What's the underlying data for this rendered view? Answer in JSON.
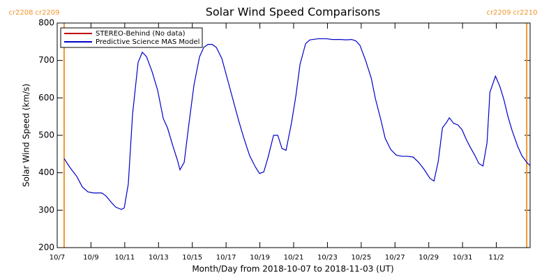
{
  "chart_data": {
    "type": "line",
    "title": "Solar Wind Speed Comparisons",
    "x_label": "Month/Day from 2018-10-07 to 2018-11-03 (UT)",
    "y_label": "Solar Wind Speed (km/s)",
    "xlim": [
      0,
      28
    ],
    "ylim": [
      200,
      800
    ],
    "xticks": [
      {
        "value": 0,
        "label": "10/7"
      },
      {
        "value": 2,
        "label": "10/9"
      },
      {
        "value": 4,
        "label": "10/11"
      },
      {
        "value": 6,
        "label": "10/13"
      },
      {
        "value": 8,
        "label": "10/15"
      },
      {
        "value": 10,
        "label": "10/17"
      },
      {
        "value": 12,
        "label": "10/19"
      },
      {
        "value": 14,
        "label": "10/21"
      },
      {
        "value": 16,
        "label": "10/23"
      },
      {
        "value": 18,
        "label": "10/25"
      },
      {
        "value": 20,
        "label": "10/27"
      },
      {
        "value": 22,
        "label": "10/29"
      },
      {
        "value": 24,
        "label": "10/31"
      },
      {
        "value": 26,
        "label": "11/2"
      }
    ],
    "yticks": [
      200,
      300,
      400,
      500,
      600,
      700,
      800
    ],
    "legend": "upper left",
    "markers": [
      {
        "x": 0.41,
        "labels": [
          "cr2208",
          "cr2209"
        ],
        "color": "#f0962a"
      },
      {
        "x": 27.8,
        "labels": [
          "cr2209",
          "cr2210"
        ],
        "color": "#f0962a"
      }
    ],
    "series": [
      {
        "name": "STEREO-Behind (No data)",
        "color": "#c00000",
        "x": [],
        "values": []
      },
      {
        "name": "Predictive Science MAS Model",
        "color": "#0000c8",
        "x": [
          0.41,
          0.74,
          1.16,
          1.49,
          1.82,
          2.15,
          2.64,
          2.89,
          3.22,
          3.47,
          3.8,
          3.97,
          4.21,
          4.46,
          4.79,
          5.04,
          5.29,
          5.62,
          5.95,
          6.28,
          6.53,
          6.86,
          7.11,
          7.27,
          7.52,
          7.77,
          8.1,
          8.43,
          8.68,
          8.93,
          9.17,
          9.42,
          9.75,
          10.08,
          10.41,
          10.74,
          11.07,
          11.4,
          11.74,
          11.98,
          12.23,
          12.48,
          12.81,
          13.06,
          13.31,
          13.55,
          13.88,
          14.13,
          14.38,
          14.71,
          14.96,
          15.45,
          15.95,
          16.28,
          16.78,
          17.11,
          17.44,
          17.69,
          17.93,
          18.26,
          18.6,
          18.84,
          19.17,
          19.42,
          19.75,
          20.08,
          20.41,
          20.74,
          21.07,
          21.4,
          21.74,
          22.07,
          22.31,
          22.56,
          22.81,
          23.06,
          23.22,
          23.47,
          23.72,
          23.97,
          24.21,
          24.46,
          24.71,
          24.96,
          25.21,
          25.45,
          25.62,
          25.95,
          26.2,
          26.45,
          26.69,
          26.94,
          27.27,
          27.52,
          27.85,
          27.98
        ],
        "values": [
          438,
          415,
          390,
          362,
          349,
          346,
          346,
          338,
          320,
          308,
          302,
          306,
          370,
          555,
          695,
          722,
          710,
          670,
          620,
          545,
          520,
          470,
          435,
          408,
          428,
          520,
          635,
          710,
          735,
          743,
          743,
          735,
          705,
          650,
          595,
          540,
          490,
          445,
          415,
          398,
          402,
          440,
          500,
          500,
          465,
          460,
          535,
          605,
          690,
          745,
          755,
          758,
          758,
          756,
          756,
          755,
          756,
          752,
          740,
          700,
          652,
          598,
          540,
          492,
          462,
          447,
          444,
          444,
          442,
          428,
          408,
          385,
          378,
          430,
          520,
          535,
          547,
          532,
          528,
          515,
          490,
          468,
          448,
          425,
          418,
          480,
          615,
          658,
          632,
          595,
          550,
          512,
          470,
          445,
          425,
          420
        ]
      }
    ]
  }
}
